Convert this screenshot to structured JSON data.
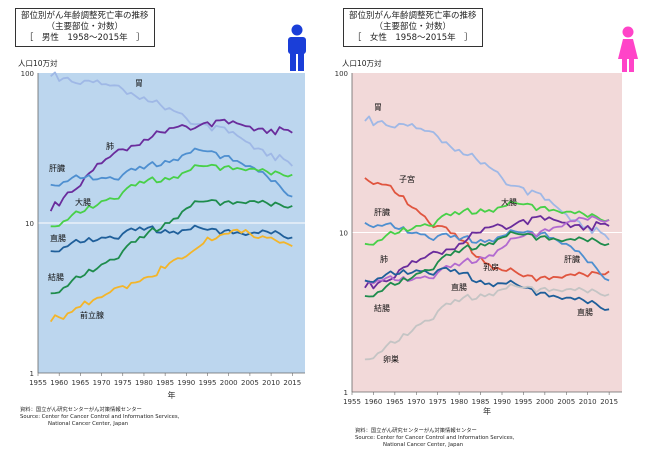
{
  "charts": [
    {
      "title_line1": "部位別がん年齢調整死亡率の推移",
      "title_line2": "（主要部位・対数）",
      "title_line3": "［　男性　1958～2015年　］",
      "ylabel": "人口10万対",
      "xlabel": "年",
      "source_line1": "資料：国立がん研究センターがん対策情報センター",
      "source_line2": "Source: Center for Cancer Control and Information Services,",
      "source_line3": "National Cancer Center, Japan",
      "icon": "male-person-icon"
    },
    {
      "title_line1": "部位別がん年齢調整死亡率の推移",
      "title_line2": "（主要部位・対数）",
      "title_line3": "［　女性　1958～2015年　］",
      "ylabel": "人口10万対",
      "xlabel": "年",
      "source_line1": "資料：国立がん研究センターがん対策情報センター",
      "source_line2": "Source: Center for Cancer Control and Information Services,",
      "source_line3": "National Cancer Center, Japan",
      "icon": "female-person-icon"
    }
  ],
  "chart_data": [
    {
      "type": "line",
      "title": "部位別がん年齢調整死亡率の推移（主要部位・対数）［男性 1958～2015年］",
      "xlabel": "年",
      "ylabel": "人口10万対",
      "y_scale": "log",
      "xlim": [
        1955,
        2018
      ],
      "ylim": [
        1,
        100
      ],
      "x_ticks": [
        "1955",
        "1960",
        "1965",
        "1970",
        "1975",
        "1980",
        "1985",
        "1990",
        "1995",
        "2000",
        "2005",
        "2010",
        "2015"
      ],
      "y_ticks": [
        "1",
        "10",
        "100"
      ],
      "grid": true,
      "background_color": "#bcd6ee",
      "series": [
        {
          "name": "胃",
          "color": "#9fb8e6",
          "points": [
            [
              1958,
              95
            ],
            [
              1962,
              93
            ],
            [
              1966,
              89
            ],
            [
              1970,
              84
            ],
            [
              1975,
              78
            ],
            [
              1980,
              69
            ],
            [
              1985,
              57
            ],
            [
              1990,
              50
            ],
            [
              1995,
              45
            ],
            [
              2000,
              40
            ],
            [
              2005,
              34
            ],
            [
              2010,
              29
            ],
            [
              2015,
              24
            ]
          ]
        },
        {
          "name": "肺",
          "color": "#6a2c9c",
          "points": [
            [
              1958,
              12
            ],
            [
              1962,
              16
            ],
            [
              1966,
              20
            ],
            [
              1970,
              25
            ],
            [
              1975,
              31
            ],
            [
              1980,
              36
            ],
            [
              1985,
              40
            ],
            [
              1990,
              44
            ],
            [
              1995,
              47
            ],
            [
              2000,
              46
            ],
            [
              2005,
              44
            ],
            [
              2010,
              42
            ],
            [
              2015,
              40
            ]
          ]
        },
        {
          "name": "肝臓",
          "color": "#4e8fd0",
          "points": [
            [
              1958,
              18
            ],
            [
              1962,
              19
            ],
            [
              1966,
              20
            ],
            [
              1970,
              20
            ],
            [
              1975,
              21
            ],
            [
              1980,
              23
            ],
            [
              1985,
              26
            ],
            [
              1990,
              29
            ],
            [
              1995,
              30
            ],
            [
              2000,
              28
            ],
            [
              2005,
              24
            ],
            [
              2010,
              19
            ],
            [
              2015,
              15
            ]
          ]
        },
        {
          "name": "大腸",
          "color": "#48d048",
          "points": [
            [
              1958,
              9.5
            ],
            [
              1962,
              10.5
            ],
            [
              1966,
              12
            ],
            [
              1970,
              14
            ],
            [
              1975,
              16
            ],
            [
              1980,
              18.5
            ],
            [
              1985,
              20
            ],
            [
              1990,
              22
            ],
            [
              1995,
              24
            ],
            [
              2000,
              24
            ],
            [
              2005,
              23
            ],
            [
              2010,
              21
            ],
            [
              2015,
              21
            ]
          ]
        },
        {
          "name": "直腸",
          "color": "#1f5f9a",
          "points": [
            [
              1958,
              6.5
            ],
            [
              1962,
              7
            ],
            [
              1966,
              7.5
            ],
            [
              1970,
              8
            ],
            [
              1975,
              8.5
            ],
            [
              1980,
              9
            ],
            [
              1985,
              9
            ],
            [
              1990,
              9
            ],
            [
              1995,
              9
            ],
            [
              2000,
              9
            ],
            [
              2005,
              8.5
            ],
            [
              2010,
              8.5
            ],
            [
              2015,
              8
            ]
          ]
        },
        {
          "name": "結腸",
          "color": "#1e8c4c",
          "points": [
            [
              1958,
              3.4
            ],
            [
              1962,
              3.8
            ],
            [
              1966,
              4.5
            ],
            [
              1970,
              5.3
            ],
            [
              1975,
              6.5
            ],
            [
              1980,
              8
            ],
            [
              1985,
              10
            ],
            [
              1990,
              12.5
            ],
            [
              1995,
              14
            ],
            [
              2000,
              14
            ],
            [
              2005,
              14
            ],
            [
              2010,
              13
            ],
            [
              2015,
              13
            ]
          ]
        },
        {
          "name": "前立腺",
          "color": "#f3b52a",
          "points": [
            [
              1958,
              2.2
            ],
            [
              1962,
              2.5
            ],
            [
              1966,
              3
            ],
            [
              1970,
              3.2
            ],
            [
              1975,
              3.8
            ],
            [
              1980,
              4.3
            ],
            [
              1985,
              5
            ],
            [
              1990,
              6
            ],
            [
              1995,
              8
            ],
            [
              2000,
              8.5
            ],
            [
              2005,
              8.5
            ],
            [
              2010,
              8
            ],
            [
              2015,
              7
            ]
          ]
        }
      ]
    },
    {
      "type": "line",
      "title": "部位別がん年齢調整死亡率の推移（主要部位・対数）［女性 1958～2015年］",
      "xlabel": "年",
      "ylabel": "人口10万対",
      "y_scale": "log",
      "xlim": [
        1955,
        2018
      ],
      "ylim": [
        1,
        100
      ],
      "x_ticks": [
        "1955",
        "1960",
        "1965",
        "1970",
        "1975",
        "1980",
        "1985",
        "1990",
        "1995",
        "2000",
        "2005",
        "2010",
        "2015"
      ],
      "y_ticks": [
        "1",
        "10",
        "100"
      ],
      "grid": true,
      "background_color": "#f2d9d9",
      "series": [
        {
          "name": "胃",
          "color": "#9fb8e6",
          "points": [
            [
              1958,
              50
            ],
            [
              1962,
              50
            ],
            [
              1966,
              48
            ],
            [
              1970,
              45
            ],
            [
              1975,
              40
            ],
            [
              1980,
              33
            ],
            [
              1985,
              27
            ],
            [
              1990,
              22
            ],
            [
              1995,
              19
            ],
            [
              2000,
              16
            ],
            [
              2005,
              13
            ],
            [
              2010,
              11
            ],
            [
              2015,
              9
            ]
          ]
        },
        {
          "name": "子宮",
          "color": "#e0553f",
          "points": [
            [
              1958,
              22
            ],
            [
              1962,
              20
            ],
            [
              1966,
              17
            ],
            [
              1970,
              14
            ],
            [
              1975,
              11
            ],
            [
              1980,
              9
            ],
            [
              1985,
              7
            ],
            [
              1990,
              5.8
            ],
            [
              1995,
              5.3
            ],
            [
              2000,
              5.3
            ],
            [
              2005,
              5.4
            ],
            [
              2010,
              5.3
            ],
            [
              2015,
              5.7
            ]
          ]
        },
        {
          "name": "肝臓",
          "color": "#4e8fd0",
          "points": [
            [
              1958,
              11.5
            ],
            [
              1962,
              11
            ],
            [
              1966,
              10.5
            ],
            [
              1970,
              10
            ],
            [
              1975,
              9.5
            ],
            [
              1980,
              9
            ],
            [
              1985,
              9
            ],
            [
              1990,
              9.5
            ],
            [
              1995,
              10
            ],
            [
              2000,
              10
            ],
            [
              2005,
              8.5
            ],
            [
              2010,
              6.5
            ],
            [
              2015,
              5
            ]
          ]
        },
        {
          "name": "大腸",
          "color": "#48d048",
          "points": [
            [
              1958,
              8.5
            ],
            [
              1962,
              9
            ],
            [
              1966,
              10
            ],
            [
              1970,
              11
            ],
            [
              1975,
              12
            ],
            [
              1980,
              13
            ],
            [
              1985,
              14
            ],
            [
              1990,
              14.5
            ],
            [
              1995,
              15
            ],
            [
              2000,
              14.5
            ],
            [
              2005,
              13.5
            ],
            [
              2010,
              12.5
            ],
            [
              2015,
              12
            ]
          ]
        },
        {
          "name": "肺",
          "color": "#6a2c9c",
          "points": [
            [
              1958,
              4.5
            ],
            [
              1962,
              5
            ],
            [
              1966,
              5.8
            ],
            [
              1970,
              6.5
            ],
            [
              1975,
              7.5
            ],
            [
              1980,
              8.5
            ],
            [
              1985,
              10
            ],
            [
              1990,
              11
            ],
            [
              1995,
              12
            ],
            [
              2000,
              12
            ],
            [
              2005,
              11.5
            ],
            [
              2010,
              11
            ],
            [
              2015,
              11
            ]
          ]
        },
        {
          "name": "乳房",
          "color": "#b26ad0",
          "points": [
            [
              1958,
              5
            ],
            [
              1962,
              5
            ],
            [
              1966,
              5
            ],
            [
              1970,
              5.2
            ],
            [
              1975,
              5.6
            ],
            [
              1980,
              6.2
            ],
            [
              1985,
              7
            ],
            [
              1990,
              8
            ],
            [
              1995,
              9.5
            ],
            [
              2000,
              10.5
            ],
            [
              2005,
              11.5
            ],
            [
              2010,
              12
            ],
            [
              2015,
              12
            ]
          ]
        },
        {
          "name": "直腸",
          "color": "#1f5f9a",
          "points": [
            [
              1958,
              5
            ],
            [
              1962,
              5.2
            ],
            [
              1966,
              5.5
            ],
            [
              1970,
              5.8
            ],
            [
              1975,
              5.8
            ],
            [
              1980,
              5.5
            ],
            [
              1985,
              5
            ],
            [
              1990,
              4.8
            ],
            [
              1995,
              4.5
            ],
            [
              2000,
              4.2
            ],
            [
              2005,
              3.9
            ],
            [
              2010,
              3.6
            ],
            [
              2015,
              3.3
            ]
          ]
        },
        {
          "name": "結腸",
          "color": "#1e8c4c",
          "points": [
            [
              1958,
              4
            ],
            [
              1962,
              4.3
            ],
            [
              1966,
              4.8
            ],
            [
              1970,
              5.5
            ],
            [
              1975,
              6.5
            ],
            [
              1980,
              7.5
            ],
            [
              1985,
              8.5
            ],
            [
              1990,
              9.3
            ],
            [
              1995,
              9.7
            ],
            [
              2000,
              9.5
            ],
            [
              2005,
              9
            ],
            [
              2010,
              8.8
            ],
            [
              2015,
              8.5
            ]
          ]
        },
        {
          "name": "卵巣",
          "color": "#c4c4c4",
          "points": [
            [
              1958,
              1.6
            ],
            [
              1962,
              1.8
            ],
            [
              1966,
              2.1
            ],
            [
              1970,
              2.6
            ],
            [
              1975,
              3.2
            ],
            [
              1980,
              3.7
            ],
            [
              1985,
              4.1
            ],
            [
              1990,
              4.4
            ],
            [
              1995,
              4.5
            ],
            [
              2000,
              4.5
            ],
            [
              2005,
              4.4
            ],
            [
              2010,
              4.2
            ],
            [
              2015,
              4.1
            ]
          ]
        }
      ]
    }
  ]
}
